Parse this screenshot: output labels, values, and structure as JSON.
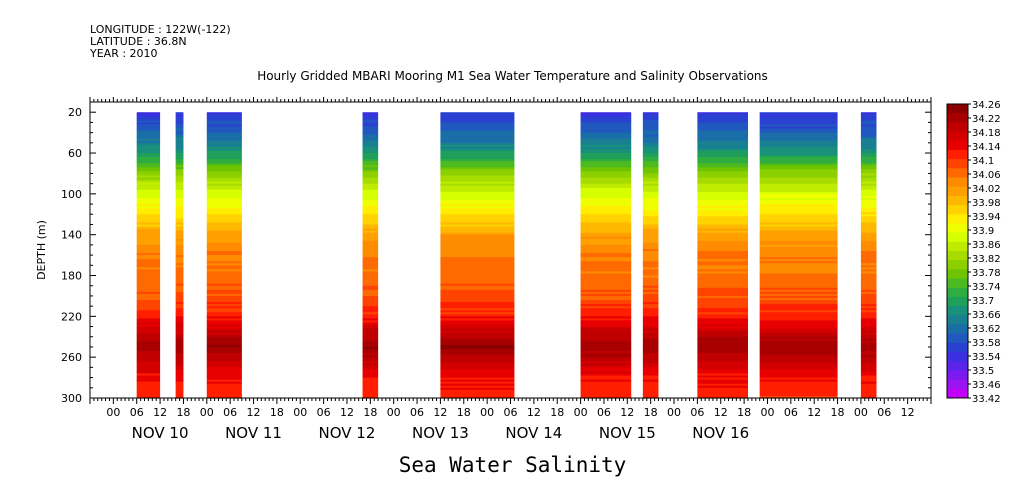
{
  "header": {
    "longitude": "LONGITUDE : 122W(-122)",
    "latitude": "LATITUDE : 36.8N",
    "year": "YEAR : 2010"
  },
  "title": "Hourly Gridded MBARI Mooring M1 Sea Water Temperature and Salinity Observations",
  "bottom_title": "Sea Water Salinity",
  "chart_data": {
    "type": "heatmap",
    "title": "Hourly Gridded MBARI Mooring M1 Sea Water Temperature and Salinity Observations",
    "ylabel": "DEPTH (m)",
    "xlabel": "",
    "variable": "Sea Water Salinity",
    "y_inverted": true,
    "ylim": [
      10,
      300
    ],
    "y_ticks": [
      20,
      60,
      100,
      140,
      180,
      220,
      260,
      300
    ],
    "x_hour_range": [
      -6,
      210
    ],
    "x_hour_ticks_labels": [
      "00",
      "06",
      "12",
      "18"
    ],
    "x_days": [
      "NOV 10",
      "NOV 11",
      "NOV 12",
      "NOV 13",
      "NOV 14",
      "NOV 15",
      "NOV 16"
    ],
    "data_segments_hours": [
      [
        6,
        12
      ],
      [
        16,
        18
      ],
      [
        24,
        33
      ],
      [
        64,
        68
      ],
      [
        84,
        103
      ],
      [
        120,
        133
      ],
      [
        136,
        140
      ],
      [
        150,
        163
      ],
      [
        166,
        186
      ],
      [
        192,
        196
      ]
    ],
    "depth_top_m": 20,
    "profile": {
      "depths_m": [
        20,
        40,
        60,
        80,
        100,
        120,
        140,
        160,
        180,
        200,
        220,
        240,
        250,
        260,
        280,
        300
      ],
      "salinity": [
        33.55,
        33.6,
        33.68,
        33.8,
        33.88,
        33.94,
        34.01,
        34.05,
        34.06,
        34.08,
        34.12,
        34.2,
        34.23,
        34.2,
        34.13,
        34.11
      ]
    },
    "colorbar": {
      "labels": [
        "34.26",
        "34.22",
        "34.18",
        "34.14",
        "34.1",
        "34.06",
        "34.02",
        "33.98",
        "33.94",
        "33.9",
        "33.86",
        "33.82",
        "33.78",
        "33.74",
        "33.7",
        "33.66",
        "33.62",
        "33.58",
        "33.54",
        "33.5",
        "33.46",
        "33.42"
      ],
      "colors": [
        "#8c0000",
        "#a80000",
        "#c00000",
        "#d40000",
        "#e80000",
        "#ff1e00",
        "#ff4400",
        "#ff6a00",
        "#ff8c00",
        "#ffa000",
        "#ffb800",
        "#ffd200",
        "#ffee00",
        "#f0ff00",
        "#d6ff00",
        "#beeb00",
        "#a6dc00",
        "#8cd000",
        "#6ec400",
        "#4cba20",
        "#30ad40",
        "#1ea05a",
        "#18907a",
        "#188090",
        "#1a6ea8",
        "#2058c0",
        "#2a40d0",
        "#3a30e0",
        "#5a24ea",
        "#7a1aee",
        "#9a14f2",
        "#c000f8"
      ]
    }
  }
}
